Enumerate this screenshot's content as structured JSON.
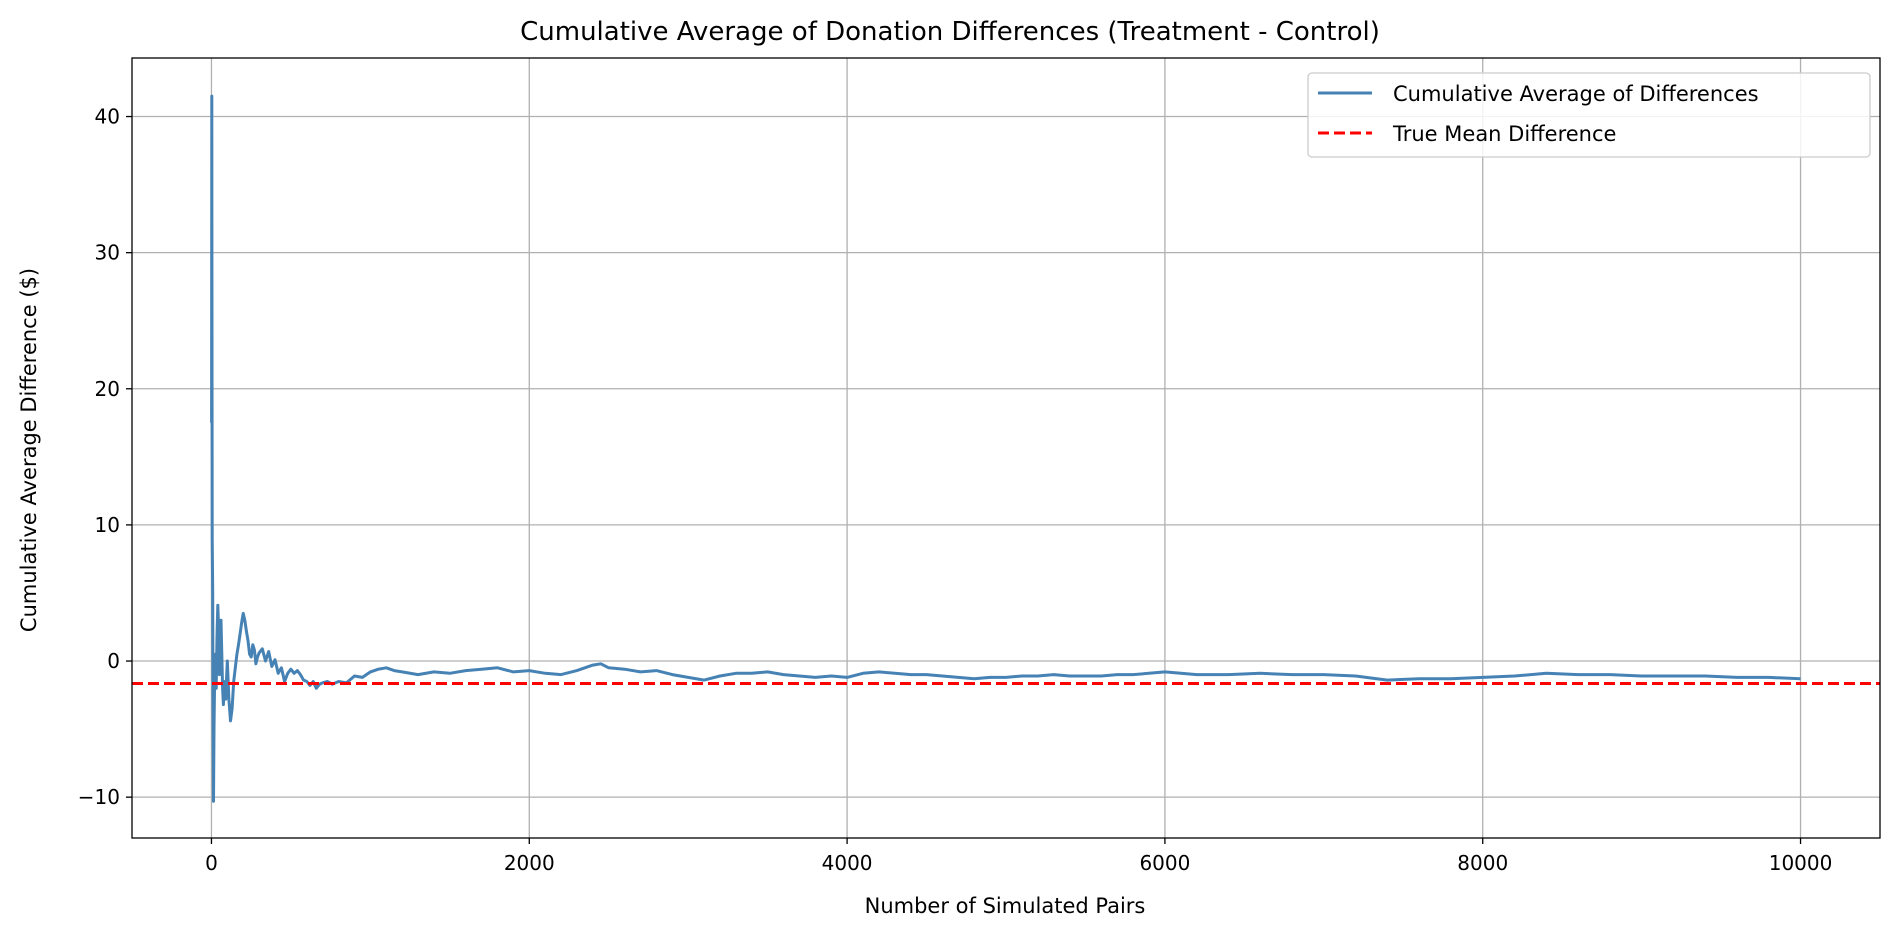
{
  "chart_data": {
    "type": "line",
    "title": "Cumulative Average of Donation Differences (Treatment - Control)",
    "xlabel": "Number of Simulated Pairs",
    "ylabel": "Cumulative Average Difference ($)",
    "xlim": [
      -500,
      10500
    ],
    "ylim": [
      -13,
      44.3
    ],
    "xticks": [
      0,
      2000,
      4000,
      6000,
      8000,
      10000
    ],
    "yticks": [
      -10,
      0,
      10,
      20,
      30,
      40
    ],
    "grid": true,
    "legend_position": "top-right",
    "series": [
      {
        "name": "Cumulative Average of Differences",
        "color": "#4682b4",
        "style": "solid",
        "x": [
          1,
          2,
          3,
          5,
          8,
          10,
          13,
          16,
          20,
          25,
          30,
          35,
          40,
          45,
          50,
          55,
          60,
          65,
          70,
          75,
          80,
          85,
          90,
          95,
          100,
          110,
          120,
          130,
          140,
          150,
          160,
          170,
          180,
          190,
          200,
          210,
          220,
          230,
          240,
          250,
          260,
          270,
          280,
          290,
          300,
          320,
          340,
          360,
          380,
          400,
          420,
          440,
          460,
          480,
          500,
          520,
          540,
          560,
          580,
          600,
          620,
          640,
          660,
          680,
          700,
          730,
          760,
          800,
          850,
          900,
          950,
          1000,
          1050,
          1100,
          1150,
          1200,
          1300,
          1400,
          1500,
          1600,
          1700,
          1800,
          1900,
          2000,
          2100,
          2200,
          2300,
          2400,
          2450,
          2500,
          2600,
          2700,
          2800,
          2900,
          3000,
          3100,
          3200,
          3300,
          3400,
          3500,
          3600,
          3700,
          3800,
          3900,
          4000,
          4100,
          4200,
          4300,
          4400,
          4500,
          4600,
          4700,
          4800,
          4900,
          5000,
          5100,
          5200,
          5300,
          5400,
          5500,
          5600,
          5700,
          5800,
          5900,
          6000,
          6200,
          6400,
          6600,
          6800,
          7000,
          7200,
          7400,
          7600,
          7800,
          8000,
          8200,
          8400,
          8600,
          8800,
          9000,
          9200,
          9400,
          9600,
          9800,
          10000
        ],
        "values": [
          17.5,
          41.5,
          30.0,
          9.0,
          5.0,
          -3.0,
          -10.3,
          -5.0,
          -1.5,
          0.5,
          -2.0,
          1.8,
          4.1,
          2.5,
          -1.0,
          1.0,
          3.0,
          0.5,
          -2.0,
          -3.2,
          -1.5,
          -2.5,
          -2.8,
          -1.2,
          0.0,
          -2.8,
          -4.4,
          -3.5,
          -1.5,
          -0.5,
          0.5,
          1.2,
          2.0,
          2.8,
          3.5,
          3.0,
          2.2,
          1.5,
          0.5,
          0.3,
          1.2,
          0.8,
          -0.2,
          0.3,
          0.6,
          0.9,
          0.0,
          0.7,
          -0.4,
          0.1,
          -0.9,
          -0.5,
          -1.5,
          -0.9,
          -0.6,
          -0.9,
          -0.7,
          -1.0,
          -1.4,
          -1.5,
          -1.8,
          -1.5,
          -2.0,
          -1.7,
          -1.6,
          -1.5,
          -1.7,
          -1.5,
          -1.6,
          -1.1,
          -1.2,
          -0.8,
          -0.6,
          -0.5,
          -0.7,
          -0.8,
          -1.0,
          -0.8,
          -0.9,
          -0.7,
          -0.6,
          -0.5,
          -0.8,
          -0.7,
          -0.9,
          -1.0,
          -0.7,
          -0.3,
          -0.2,
          -0.5,
          -0.6,
          -0.8,
          -0.7,
          -1.0,
          -1.2,
          -1.4,
          -1.1,
          -0.9,
          -0.9,
          -0.8,
          -1.0,
          -1.1,
          -1.2,
          -1.1,
          -1.2,
          -0.9,
          -0.8,
          -0.9,
          -1.0,
          -1.0,
          -1.1,
          -1.2,
          -1.3,
          -1.2,
          -1.2,
          -1.1,
          -1.1,
          -1.0,
          -1.1,
          -1.1,
          -1.1,
          -1.0,
          -1.0,
          -0.9,
          -0.8,
          -1.0,
          -1.0,
          -0.9,
          -1.0,
          -1.0,
          -1.1,
          -1.4,
          -1.3,
          -1.3,
          -1.2,
          -1.1,
          -0.9,
          -1.0,
          -1.0,
          -1.1,
          -1.1,
          -1.1,
          -1.2,
          -1.2,
          -1.3
        ]
      },
      {
        "name": "True Mean Difference",
        "color": "#ff0000",
        "style": "dashed",
        "y": -1.65
      }
    ]
  }
}
